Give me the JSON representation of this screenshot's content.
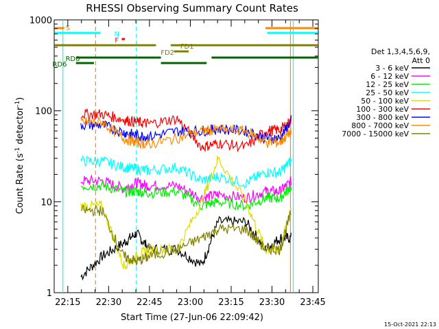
{
  "chart_data": {
    "type": "line",
    "title": "RHESSI Observing Summary Count Rates",
    "xlabel": "Start Time (27-Jun-06 22:09:42)",
    "ylabel_main": "Count Rate (s",
    "ylabel_sup1": "-1",
    "ylabel_mid": " detector",
    "ylabel_sup2": "-1",
    "ylabel_end": ")",
    "y_scale": "log",
    "ylim": [
      1,
      1000
    ],
    "xlim": [
      "22:10",
      "23:47"
    ],
    "x_tick_labels": [
      "22:15",
      "22:30",
      "22:45",
      "23:00",
      "23:15",
      "23:30",
      "23:45"
    ],
    "y_tick_labels": [
      "1",
      "10",
      "100",
      "1000"
    ],
    "legend_header_1": "Det 1,3,4,5,6,9,",
    "legend_header_2": "Att 0",
    "footer_date": "15-Oct-2021 22:13",
    "series": [
      {
        "name": "3 - 6 keV",
        "color": "#000000",
        "values": [
          [
            22.16,
            1.5
          ],
          [
            22.29,
            2.5
          ],
          [
            22.42,
            3.5
          ],
          [
            22.5,
            4.5
          ],
          [
            22.58,
            3
          ],
          [
            22.75,
            3
          ],
          [
            22.9,
            2
          ],
          [
            23.0,
            6
          ],
          [
            23.17,
            6
          ],
          [
            23.29,
            3
          ],
          [
            23.38,
            4
          ],
          [
            23.45,
            4
          ]
        ]
      },
      {
        "name": "6 - 12 keV",
        "color": "#ff00ff",
        "values": [
          [
            22.16,
            17
          ],
          [
            22.29,
            17
          ],
          [
            22.42,
            14
          ],
          [
            22.5,
            16
          ],
          [
            22.58,
            15
          ],
          [
            22.75,
            15
          ],
          [
            22.9,
            11
          ],
          [
            23.0,
            12
          ],
          [
            23.17,
            11
          ],
          [
            23.29,
            13
          ],
          [
            23.38,
            13
          ],
          [
            23.45,
            17
          ]
        ]
      },
      {
        "name": "12 - 25 keV",
        "color": "#00ee00",
        "values": [
          [
            22.16,
            15
          ],
          [
            22.29,
            15
          ],
          [
            22.42,
            13
          ],
          [
            22.5,
            13
          ],
          [
            22.58,
            12.5
          ],
          [
            22.75,
            13
          ],
          [
            22.9,
            9
          ],
          [
            23.0,
            10
          ],
          [
            23.17,
            9
          ],
          [
            23.29,
            11
          ],
          [
            23.38,
            11
          ],
          [
            23.45,
            15
          ]
        ]
      },
      {
        "name": "25 - 50 keV",
        "color": "#00ffff",
        "values": [
          [
            22.16,
            28
          ],
          [
            22.29,
            28
          ],
          [
            22.42,
            24
          ],
          [
            22.5,
            23
          ],
          [
            22.58,
            22
          ],
          [
            22.75,
            24
          ],
          [
            22.9,
            17
          ],
          [
            23.0,
            19
          ],
          [
            23.17,
            16
          ],
          [
            23.29,
            21
          ],
          [
            23.38,
            21
          ],
          [
            23.45,
            29
          ]
        ]
      },
      {
        "name": "50 - 100 keV",
        "color": "#dddd00",
        "values": [
          [
            22.16,
            9
          ],
          [
            22.29,
            9
          ],
          [
            22.42,
            2
          ],
          [
            22.5,
            2.5
          ],
          [
            22.58,
            3
          ],
          [
            22.75,
            3
          ],
          [
            22.9,
            10
          ],
          [
            23.0,
            30
          ],
          [
            23.17,
            10
          ],
          [
            23.29,
            3
          ],
          [
            23.38,
            3
          ],
          [
            23.45,
            9
          ]
        ]
      },
      {
        "name": "100 - 300 keV",
        "color": "#ff0000",
        "values": [
          [
            22.16,
            92
          ],
          [
            22.29,
            92
          ],
          [
            22.42,
            80
          ],
          [
            22.5,
            75
          ],
          [
            22.58,
            72
          ],
          [
            22.75,
            82
          ],
          [
            22.9,
            40
          ],
          [
            23.0,
            44
          ],
          [
            23.17,
            40
          ],
          [
            23.29,
            60
          ],
          [
            23.38,
            62
          ],
          [
            23.45,
            78
          ]
        ]
      },
      {
        "name": "300 - 800 keV",
        "color": "#0000ff",
        "values": [
          [
            22.16,
            70
          ],
          [
            22.29,
            70
          ],
          [
            22.42,
            58
          ],
          [
            22.5,
            54
          ],
          [
            22.58,
            52
          ],
          [
            22.75,
            60
          ],
          [
            22.9,
            60
          ],
          [
            23.0,
            63
          ],
          [
            23.17,
            60
          ],
          [
            23.29,
            50
          ],
          [
            23.38,
            50
          ],
          [
            23.45,
            80
          ]
        ]
      },
      {
        "name": "800 - 7000 keV",
        "color": "#ff8800",
        "values": [
          [
            22.16,
            75
          ],
          [
            22.29,
            75
          ],
          [
            22.42,
            50
          ],
          [
            22.5,
            45
          ],
          [
            22.58,
            43
          ],
          [
            22.75,
            50
          ],
          [
            22.9,
            60
          ],
          [
            23.0,
            62
          ],
          [
            23.17,
            60
          ],
          [
            23.29,
            45
          ],
          [
            23.38,
            45
          ],
          [
            23.45,
            60
          ]
        ]
      },
      {
        "name": "7000 - 15000 keV",
        "color": "#808000",
        "values": [
          [
            22.16,
            8
          ],
          [
            22.29,
            8
          ],
          [
            22.42,
            2.5
          ],
          [
            22.5,
            2.2
          ],
          [
            22.58,
            2.5
          ],
          [
            22.75,
            3
          ],
          [
            22.9,
            4
          ],
          [
            23.0,
            5
          ],
          [
            23.17,
            5
          ],
          [
            23.29,
            3
          ],
          [
            23.38,
            3
          ],
          [
            23.45,
            8
          ]
        ]
      }
    ],
    "annotations": [
      {
        "label": "S",
        "color": "#ff8800"
      },
      {
        "label": "N",
        "color": "#00ffff"
      },
      {
        "label": "F",
        "color": "#ff0000"
      },
      {
        "label": "FD1",
        "color": "#808000"
      },
      {
        "label": "FD2",
        "color": "#808000"
      },
      {
        "label": "RD0",
        "color": "#006400"
      },
      {
        "label": "RD6",
        "color": "#006400"
      }
    ]
  }
}
